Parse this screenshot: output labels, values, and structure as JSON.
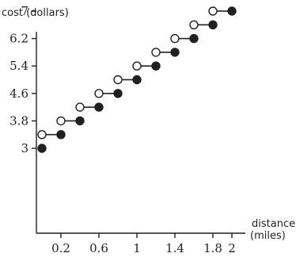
{
  "chart_data": {
    "type": "line",
    "subtype": "step-function",
    "ylabel": "cost (dollars)",
    "xlabel_lines": [
      "distance",
      "(miles)"
    ],
    "x_ticks": [
      "0.2",
      "0.6",
      "1",
      "1.4",
      "1.8",
      "2"
    ],
    "y_ticks": [
      "3",
      "3.8",
      "4.6",
      "5.4",
      "6.2",
      "7"
    ],
    "xlim": [
      0,
      2.1
    ],
    "ylim": [
      0,
      7.4
    ],
    "grid": false,
    "segments": [
      {
        "x_start": 0.0,
        "x_end": 0.2,
        "y": 3.4,
        "start": "open",
        "end": "closed"
      },
      {
        "x_start": 0.2,
        "x_end": 0.4,
        "y": 3.8,
        "start": "open",
        "end": "closed"
      },
      {
        "x_start": 0.4,
        "x_end": 0.6,
        "y": 4.2,
        "start": "open",
        "end": "closed"
      },
      {
        "x_start": 0.6,
        "x_end": 0.8,
        "y": 4.6,
        "start": "open",
        "end": "closed"
      },
      {
        "x_start": 0.8,
        "x_end": 1.0,
        "y": 5.0,
        "start": "open",
        "end": "closed"
      },
      {
        "x_start": 1.0,
        "x_end": 1.2,
        "y": 5.4,
        "start": "open",
        "end": "closed"
      },
      {
        "x_start": 1.2,
        "x_end": 1.4,
        "y": 5.8,
        "start": "open",
        "end": "closed"
      },
      {
        "x_start": 1.4,
        "x_end": 1.6,
        "y": 6.2,
        "start": "open",
        "end": "closed"
      },
      {
        "x_start": 1.6,
        "x_end": 1.8,
        "y": 6.6,
        "start": "open",
        "end": "closed"
      },
      {
        "x_start": 1.8,
        "x_end": 2.0,
        "y": 7.0,
        "start": "open",
        "end": "closed"
      }
    ],
    "isolated_points": [
      {
        "x": 0.0,
        "y": 3.0,
        "style": "closed"
      }
    ]
  }
}
